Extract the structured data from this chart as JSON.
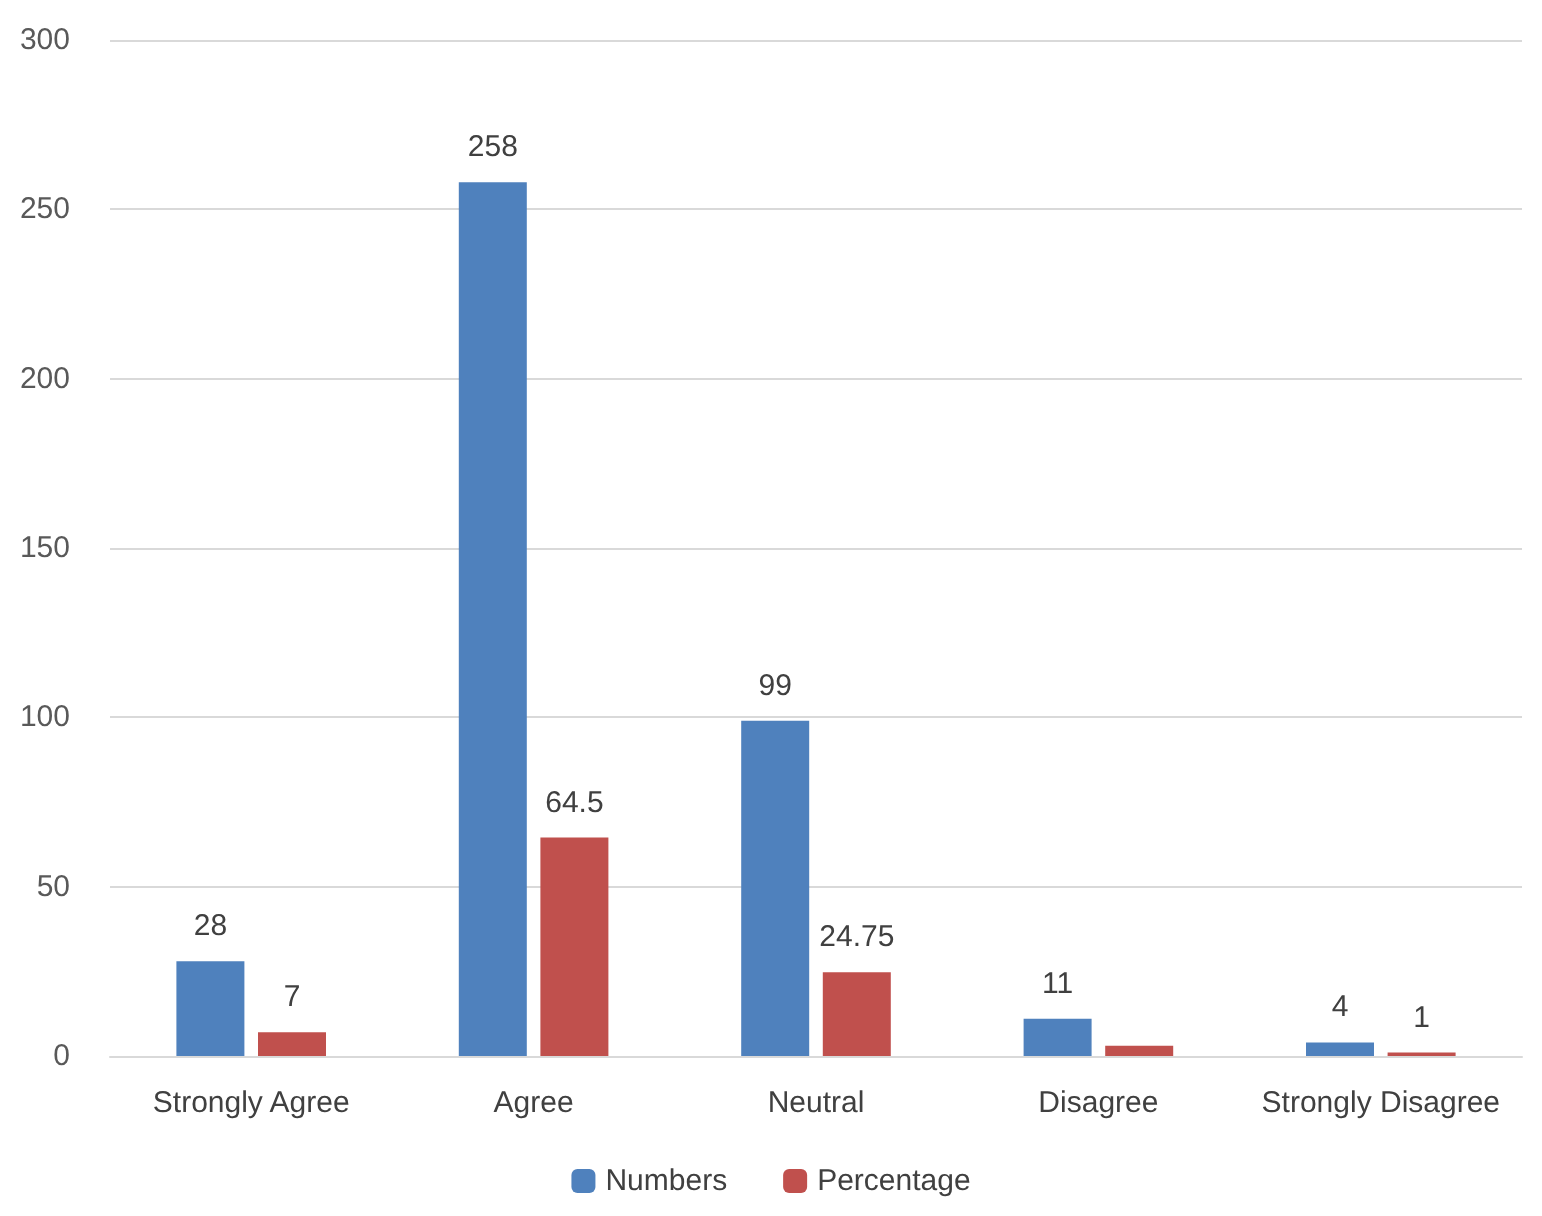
{
  "chart_data": {
    "type": "bar",
    "categories": [
      "Strongly Agree",
      "Agree",
      "Neutral",
      "Disagree",
      "Strongly Disagree"
    ],
    "series": [
      {
        "name": "Numbers",
        "color": "#4f81bd",
        "values": [
          28,
          258,
          99,
          11,
          4
        ],
        "value_labels": [
          "28",
          "258",
          "99",
          "11",
          "4"
        ]
      },
      {
        "name": "Percentage",
        "color": "#c0504d",
        "values": [
          7,
          64.5,
          24.75,
          3,
          1
        ],
        "value_labels": [
          "7",
          "64.5",
          "24.75",
          null,
          "1"
        ]
      }
    ],
    "ylim": [
      0,
      300
    ],
    "yticks": [
      0,
      50,
      100,
      150,
      200,
      250,
      300
    ],
    "grid": "y",
    "legend": "bottom"
  }
}
